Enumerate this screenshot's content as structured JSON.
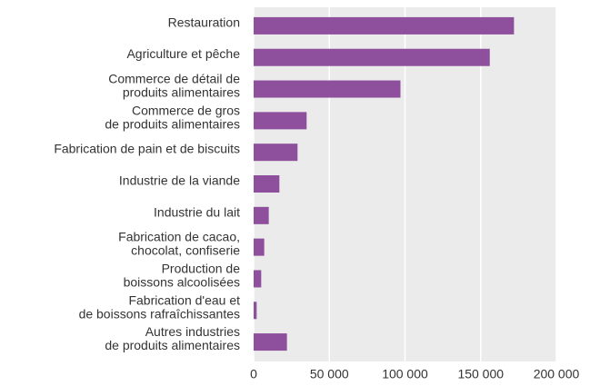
{
  "chart_data": {
    "type": "bar",
    "orientation": "horizontal",
    "categories": [
      [
        "Restauration"
      ],
      [
        "Agriculture et pêche"
      ],
      [
        "Commerce de détail de",
        "produits alimentaires"
      ],
      [
        "Commerce de gros",
        "de produits alimentaires"
      ],
      [
        "Fabrication de pain et de biscuits"
      ],
      [
        "Industrie de la viande"
      ],
      [
        "Industrie du lait"
      ],
      [
        "Fabrication de cacao,",
        "chocolat, confiserie"
      ],
      [
        "Production de",
        "boissons alcoolisées"
      ],
      [
        "Fabrication d'eau et",
        "de boissons rafraîchissantes"
      ],
      [
        "Autres industries",
        "de produits alimentaires"
      ]
    ],
    "values": [
      172000,
      156000,
      97000,
      35000,
      29000,
      17000,
      10000,
      7000,
      5000,
      2000,
      22000
    ],
    "color": "#8e4f9c",
    "xlim": [
      0,
      200000
    ],
    "xticks": [
      0,
      {
        "value": 50000,
        "label": "50 000"
      },
      {
        "value": 100000,
        "label": "100 000"
      },
      {
        "value": 150000,
        "label": "150 000"
      },
      {
        "value": 200000,
        "label": "200 000"
      }
    ],
    "grid": true
  }
}
